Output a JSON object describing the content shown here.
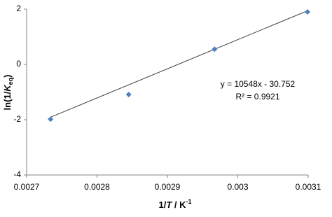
{
  "chart_data": {
    "type": "scatter",
    "x_label": [
      "1/",
      "T",
      " / K",
      "-1"
    ],
    "y_label": [
      "ln(1/",
      "K",
      "eq",
      ")"
    ],
    "series": [
      {
        "color": "#4f81bd",
        "x": [
          0.002734,
          0.002845,
          0.002967,
          0.003099
        ],
        "values": [
          -1.98,
          -1.09,
          0.55,
          1.9
        ]
      }
    ],
    "trendline": {
      "color": "#404040",
      "x": [
        0.002734,
        0.003099
      ],
      "values": [
        -1.91,
        1.94
      ]
    },
    "annotations": [
      "y = 10548x - 30.752",
      "R² = 0.9921"
    ],
    "xlim": [
      0.0027,
      0.0031
    ],
    "xticks": [
      0.0027,
      0.0028,
      0.0029,
      0.003,
      0.0031
    ],
    "ylim": [
      -4,
      2
    ],
    "yticks": [
      -4,
      -2,
      0,
      2
    ],
    "grid": false
  }
}
